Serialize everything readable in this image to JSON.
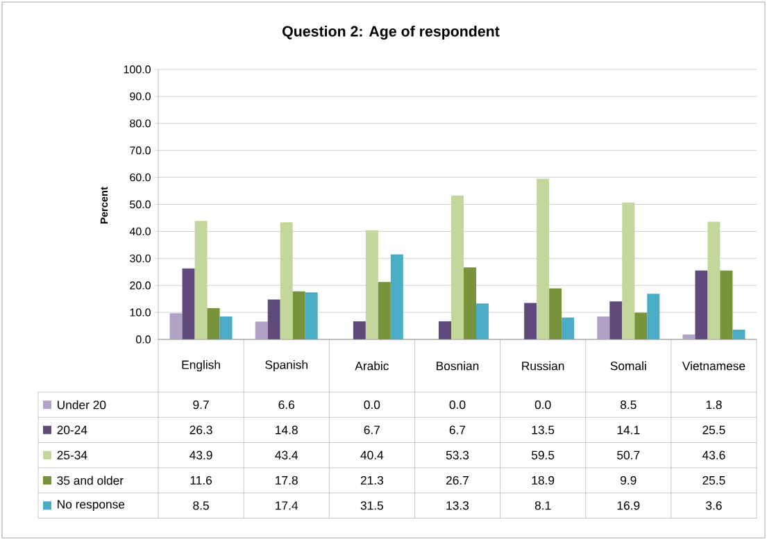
{
  "chart_data": {
    "type": "bar",
    "title": "Question 2: Age of respondent",
    "ylabel": "Percent",
    "categories": [
      "English",
      "Spanish",
      "Arabic",
      "Bosnian",
      "Russian",
      "Somali",
      "Vietnamese"
    ],
    "series": [
      {
        "name": "Under 20",
        "color": "#b3a2c7",
        "values": [
          9.7,
          6.6,
          0,
          0,
          0,
          8.5,
          1.8
        ],
        "value_labels": [
          "9.7",
          "6.6",
          "0.0",
          "0.0",
          "0.0",
          "8.5",
          "1.8"
        ]
      },
      {
        "name": "20-24",
        "color": "#604a7b",
        "values": [
          26.3,
          14.8,
          6.7,
          6.7,
          13.5,
          14.1,
          25.5
        ],
        "value_labels": [
          "26.3",
          "14.8",
          "6.7",
          "6.7",
          "13.5",
          "14.1",
          "25.5"
        ]
      },
      {
        "name": "25-34",
        "color": "#c3d69b",
        "values": [
          43.9,
          43.4,
          40.4,
          53.3,
          59.5,
          50.7,
          43.6
        ],
        "value_labels": [
          "43.9",
          "43.4",
          "40.4",
          "53.3",
          "59.5",
          "50.7",
          "43.6"
        ]
      },
      {
        "name": "35 and older",
        "color": "#77933c",
        "values": [
          11.6,
          17.8,
          21.3,
          26.7,
          18.9,
          9.9,
          25.5
        ],
        "value_labels": [
          "11.6",
          "17.8",
          "21.3",
          "26.7",
          "18.9",
          "9.9",
          "25.5"
        ]
      },
      {
        "name": "No response",
        "color": "#4bacc6",
        "values": [
          8.5,
          17.4,
          31.5,
          13.3,
          8.1,
          16.9,
          3.6
        ],
        "value_labels": [
          "8.5",
          "17.4",
          "31.5",
          "13.3",
          "8.1",
          "16.9",
          "3.6"
        ]
      }
    ],
    "ylim": [
      0,
      100
    ],
    "yticks": [
      {
        "value": 0,
        "label": "0.0"
      },
      {
        "value": 10,
        "label": "10.0"
      },
      {
        "value": 20,
        "label": "20.0"
      },
      {
        "value": 30,
        "label": "30.0"
      },
      {
        "value": 40,
        "label": "40.0"
      },
      {
        "value": 50,
        "label": "50.0"
      },
      {
        "value": 60,
        "label": "60.0"
      },
      {
        "value": 70,
        "label": "70.0"
      },
      {
        "value": 80,
        "label": "80.0"
      },
      {
        "value": 90,
        "label": "90.0"
      },
      {
        "value": 100,
        "label": "100.0"
      }
    ],
    "grid": "y",
    "legend": "bottom left"
  }
}
